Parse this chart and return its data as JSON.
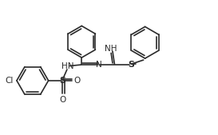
{
  "background_color": "#ffffff",
  "line_color": "#2a2a2a",
  "line_width": 1.2,
  "font_size": 7.5,
  "figsize": [
    2.73,
    1.69
  ],
  "dpi": 100,
  "xlim": [
    0,
    2.73
  ],
  "ylim": [
    0,
    1.69
  ]
}
